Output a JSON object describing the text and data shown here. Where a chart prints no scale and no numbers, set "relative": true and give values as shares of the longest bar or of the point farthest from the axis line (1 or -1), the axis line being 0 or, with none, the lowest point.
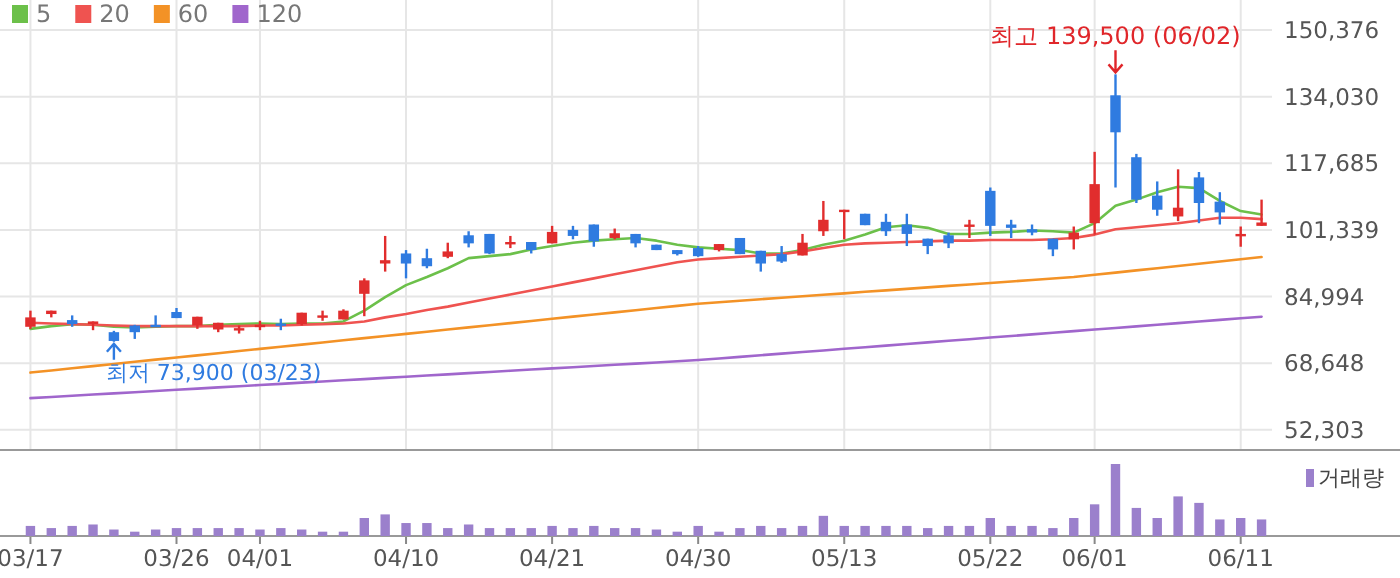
{
  "chart_data": [
    {
      "type": "candlestick",
      "categories": [
        "03/17",
        null,
        null,
        null,
        null,
        null,
        null,
        "03/26",
        null,
        null,
        null,
        "04/01",
        null,
        null,
        null,
        null,
        null,
        null,
        "04/10",
        null,
        null,
        null,
        null,
        null,
        null,
        "04/21",
        null,
        null,
        null,
        null,
        null,
        null,
        "04/30",
        null,
        null,
        null,
        null,
        null,
        null,
        "05/13",
        null,
        null,
        null,
        null,
        null,
        null,
        "05/22",
        null,
        null,
        null,
        null,
        "06/01",
        null,
        null,
        null,
        null,
        null,
        null,
        "06/11",
        null
      ],
      "ohlc": [
        [
          77570,
          81530,
          77070,
          79880
        ],
        [
          80700,
          81530,
          79880,
          81530
        ],
        [
          79220,
          80370,
          77570,
          78230
        ],
        [
          78230,
          78890,
          76740,
          78890
        ],
        [
          76250,
          76580,
          73900,
          74100
        ],
        [
          77900,
          78060,
          74600,
          76250
        ],
        [
          78060,
          80370,
          77570,
          77570
        ],
        [
          81200,
          82190,
          79710,
          79710
        ],
        [
          77900,
          80040,
          77070,
          80040
        ],
        [
          76910,
          78560,
          76250,
          78560
        ],
        [
          76740,
          77900,
          75920,
          77240
        ],
        [
          77570,
          79050,
          76740,
          78060
        ],
        [
          78390,
          79550,
          76740,
          77900
        ],
        [
          78230,
          81030,
          77900,
          81030
        ],
        [
          79880,
          81530,
          79050,
          80370
        ],
        [
          79380,
          81860,
          79380,
          81530
        ],
        [
          85660,
          89460,
          80170,
          88960
        ],
        [
          93090,
          99860,
          91110,
          93910
        ],
        [
          95560,
          96390,
          89460,
          93090
        ],
        [
          94400,
          96720,
          91930,
          92430
        ],
        [
          94740,
          98200,
          94400,
          96060
        ],
        [
          100020,
          101010,
          97050,
          98040
        ],
        [
          100350,
          100350,
          95400,
          95560
        ],
        [
          97870,
          99860,
          96880,
          98370
        ],
        [
          98370,
          98370,
          95560,
          96390
        ],
        [
          98040,
          102330,
          98040,
          100850
        ],
        [
          101340,
          102330,
          99030,
          99860
        ],
        [
          102660,
          102660,
          97210,
          98530
        ],
        [
          99360,
          101670,
          99030,
          100520
        ],
        [
          100350,
          100350,
          97050,
          98040
        ],
        [
          97710,
          97710,
          96390,
          96390
        ],
        [
          96390,
          96390,
          95070,
          95400
        ],
        [
          96880,
          97380,
          94740,
          94900
        ],
        [
          96390,
          97870,
          96060,
          97870
        ],
        [
          99360,
          99360,
          95400,
          95400
        ],
        [
          96220,
          96220,
          91110,
          93090
        ],
        [
          95400,
          97380,
          93250,
          93580
        ],
        [
          95070,
          100350,
          95070,
          98200
        ],
        [
          101010,
          108440,
          99860,
          103820
        ],
        [
          105960,
          106290,
          99030,
          106290
        ],
        [
          105300,
          105300,
          102500,
          102500
        ],
        [
          103320,
          105300,
          99860,
          101010
        ],
        [
          102660,
          105300,
          97380,
          100350
        ],
        [
          99190,
          99190,
          95400,
          97380
        ],
        [
          100020,
          100680,
          96880,
          98040
        ],
        [
          102170,
          103820,
          99360,
          102660
        ],
        [
          110920,
          111740,
          99860,
          102330
        ],
        [
          102660,
          103820,
          99360,
          101840
        ],
        [
          101500,
          102660,
          100020,
          100680
        ],
        [
          99190,
          99190,
          94900,
          96550
        ],
        [
          99030,
          102170,
          96550,
          100680
        ],
        [
          102990,
          120490,
          100190,
          112570
        ],
        [
          134360,
          139500,
          111740,
          125280
        ],
        [
          119170,
          119990,
          107940,
          108770
        ],
        [
          109760,
          113230,
          104810,
          106290
        ],
        [
          104640,
          116200,
          103490,
          106790
        ],
        [
          114220,
          115540,
          102990,
          107940
        ],
        [
          108270,
          110590,
          102660,
          105630
        ],
        [
          100020,
          102170,
          97210,
          100350
        ],
        [
          102330,
          108770,
          102330,
          103160
        ]
      ],
      "colors": [
        "#e12d2d",
        "#e12d2d",
        "#2f7be0",
        "#e12d2d",
        "#2f7be0",
        "#2f7be0",
        "#2f7be0",
        "#2f7be0",
        "#e12d2d",
        "#e12d2d",
        "#e12d2d",
        "#e12d2d",
        "#2f7be0",
        "#e12d2d",
        "#e12d2d",
        "#e12d2d",
        "#e12d2d",
        "#e12d2d",
        "#2f7be0",
        "#2f7be0",
        "#e12d2d",
        "#2f7be0",
        "#2f7be0",
        "#e12d2d",
        "#2f7be0",
        "#e12d2d",
        "#2f7be0",
        "#2f7be0",
        "#e12d2d",
        "#2f7be0",
        "#2f7be0",
        "#2f7be0",
        "#2f7be0",
        "#e12d2d",
        "#2f7be0",
        "#2f7be0",
        "#2f7be0",
        "#e12d2d",
        "#e12d2d",
        "#e12d2d",
        "#2f7be0",
        "#2f7be0",
        "#2f7be0",
        "#2f7be0",
        "#2f7be0",
        "#e12d2d",
        "#2f7be0",
        "#2f7be0",
        "#2f7be0",
        "#2f7be0",
        "#e12d2d",
        "#e12d2d",
        "#2f7be0",
        "#2f7be0",
        "#2f7be0",
        "#e12d2d",
        "#2f7be0",
        "#2f7be0",
        "#e12d2d",
        "#e12d2d"
      ],
      "series": [
        {
          "name": "5",
          "type": "line",
          "color": "#6cc04a",
          "values": [
            77070,
            77730,
            78230,
            78060,
            77570,
            77400,
            77570,
            77730,
            77730,
            78060,
            78230,
            78390,
            78230,
            78390,
            78390,
            78890,
            81530,
            84830,
            87800,
            89790,
            91930,
            94410,
            94900,
            95400,
            96550,
            97380,
            98200,
            98700,
            99030,
            99360,
            98700,
            97710,
            97050,
            96720,
            96390,
            95560,
            95560,
            96390,
            97710,
            98700,
            100190,
            101990,
            102500,
            101840,
            100350,
            100350,
            100680,
            100850,
            101180,
            101010,
            100680,
            102990,
            107290,
            108770,
            110590,
            111910,
            111580,
            108440,
            105960,
            105140
          ]
        },
        {
          "name": "20",
          "type": "line",
          "color": "#ef5350",
          "values": [
            78560,
            78390,
            78230,
            78060,
            77900,
            77730,
            77730,
            77730,
            77730,
            77730,
            77730,
            77900,
            77900,
            78060,
            78230,
            78390,
            78890,
            79880,
            80700,
            81700,
            82520,
            83510,
            84500,
            85490,
            86480,
            87470,
            88460,
            89450,
            90440,
            91430,
            92420,
            93420,
            94080,
            94410,
            94740,
            95070,
            95400,
            96060,
            96880,
            97710,
            98040,
            98200,
            98370,
            98530,
            98700,
            98700,
            98860,
            98860,
            98860,
            99030,
            99360,
            100190,
            101510,
            102000,
            102500,
            102990,
            103650,
            104310,
            104310,
            103980
          ]
        },
        {
          "name": "60",
          "type": "line",
          "color": "#f39226",
          "values": [
            66340,
            66870,
            67400,
            67920,
            68450,
            68980,
            69510,
            70040,
            70560,
            71090,
            71620,
            72150,
            72680,
            73200,
            73730,
            74260,
            74790,
            75320,
            75840,
            76370,
            76900,
            77430,
            77960,
            78480,
            79010,
            79540,
            80070,
            80600,
            81120,
            81650,
            82180,
            82710,
            83240,
            83600,
            83970,
            84330,
            84690,
            85060,
            85420,
            85780,
            86150,
            86510,
            86870,
            87230,
            87600,
            87960,
            88320,
            88690,
            89050,
            89410,
            89770,
            90320,
            90860,
            91410,
            91950,
            92500,
            93040,
            93590,
            94130,
            94680
          ]
        },
        {
          "name": "120",
          "type": "line",
          "color": "#a066cc",
          "values": [
            60070,
            60360,
            60650,
            60950,
            61240,
            61530,
            61820,
            62110,
            62410,
            62700,
            62990,
            63280,
            63570,
            63870,
            64160,
            64450,
            64740,
            65030,
            65330,
            65620,
            65910,
            66200,
            66490,
            66790,
            67080,
            67370,
            67660,
            67950,
            68250,
            68540,
            68830,
            69120,
            69410,
            69800,
            70200,
            70590,
            70990,
            71380,
            71770,
            72170,
            72560,
            72960,
            73350,
            73740,
            74140,
            74530,
            74930,
            75320,
            75710,
            76110,
            76500,
            76900,
            77290,
            77680,
            78080,
            78470,
            78870,
            79260,
            79650,
            80050
          ]
        }
      ],
      "ylim": [
        47350,
        150376
      ],
      "yticks": [
        {
          "value": 150376,
          "label": "150,376"
        },
        {
          "value": 134030,
          "label": "134,030"
        },
        {
          "value": 117685,
          "label": "117,685"
        },
        {
          "value": 101339,
          "label": "101,339"
        },
        {
          "value": 84994,
          "label": "84,994"
        },
        {
          "value": 68648,
          "label": "68,648"
        },
        {
          "value": 52303,
          "label": "52,303"
        }
      ],
      "grid": true,
      "legend": "top left",
      "annotations": [
        "최고 139,500 (06/02)",
        "최저 73,900 (03/23)"
      ]
    },
    {
      "type": "bar",
      "categories": [
        null,
        null,
        null,
        null,
        null,
        null,
        null,
        null,
        null,
        null,
        null,
        null,
        null,
        null,
        null,
        null,
        null,
        null,
        null,
        null,
        null,
        null,
        null,
        null,
        null,
        null,
        null,
        null,
        null,
        null,
        null,
        null,
        null,
        null,
        null,
        null,
        null,
        null,
        null,
        null,
        null,
        null,
        null,
        null,
        null,
        null,
        null,
        null,
        null,
        null,
        null,
        null,
        null,
        null,
        null,
        null,
        null,
        null,
        null,
        null
      ],
      "relative": true,
      "legend": "top right",
      "series": [
        {
          "name": "거래량",
          "color": "#9b80cc",
          "values": [
            0.14,
            0.11,
            0.14,
            0.16,
            0.09,
            0.06,
            0.09,
            0.11,
            0.11,
            0.11,
            0.11,
            0.09,
            0.11,
            0.09,
            0.06,
            0.06,
            0.25,
            0.3,
            0.18,
            0.18,
            0.11,
            0.16,
            0.11,
            0.11,
            0.11,
            0.14,
            0.11,
            0.14,
            0.11,
            0.11,
            0.09,
            0.06,
            0.14,
            0.06,
            0.11,
            0.14,
            0.11,
            0.14,
            0.28,
            0.14,
            0.14,
            0.14,
            0.14,
            0.11,
            0.14,
            0.14,
            0.25,
            0.14,
            0.14,
            0.11,
            0.25,
            0.44,
            1,
            0.39,
            0.25,
            0.55,
            0.46,
            0.23,
            0.25,
            0.23
          ]
        }
      ]
    }
  ]
}
